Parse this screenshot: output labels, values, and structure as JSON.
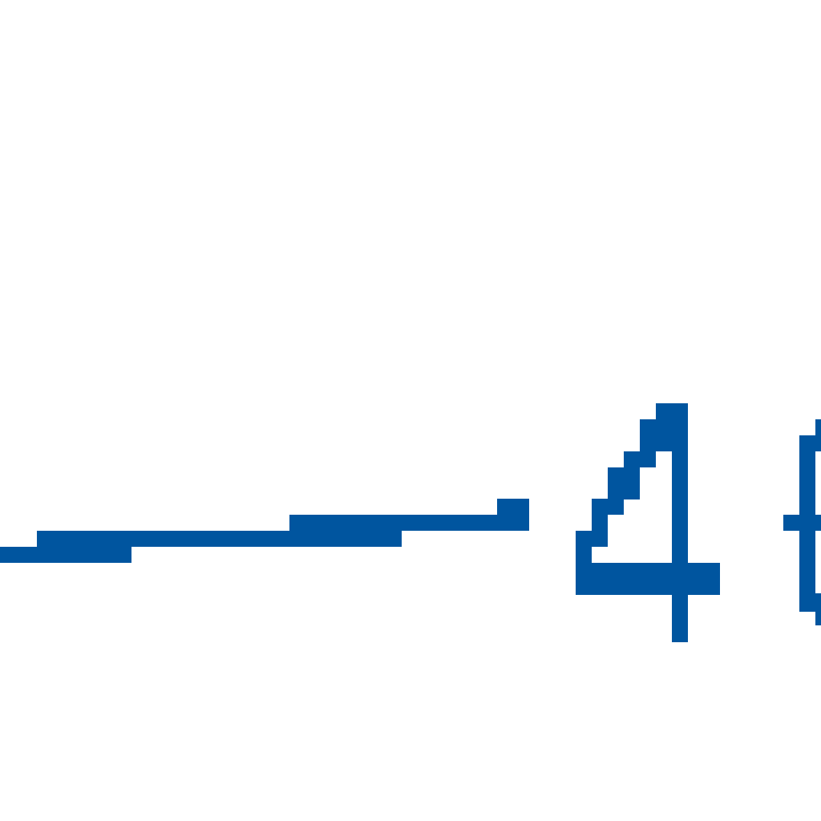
{
  "colors": {
    "background": "#ffffff",
    "ink": "#00559f"
  },
  "glyph": {
    "text": "4"
  }
}
